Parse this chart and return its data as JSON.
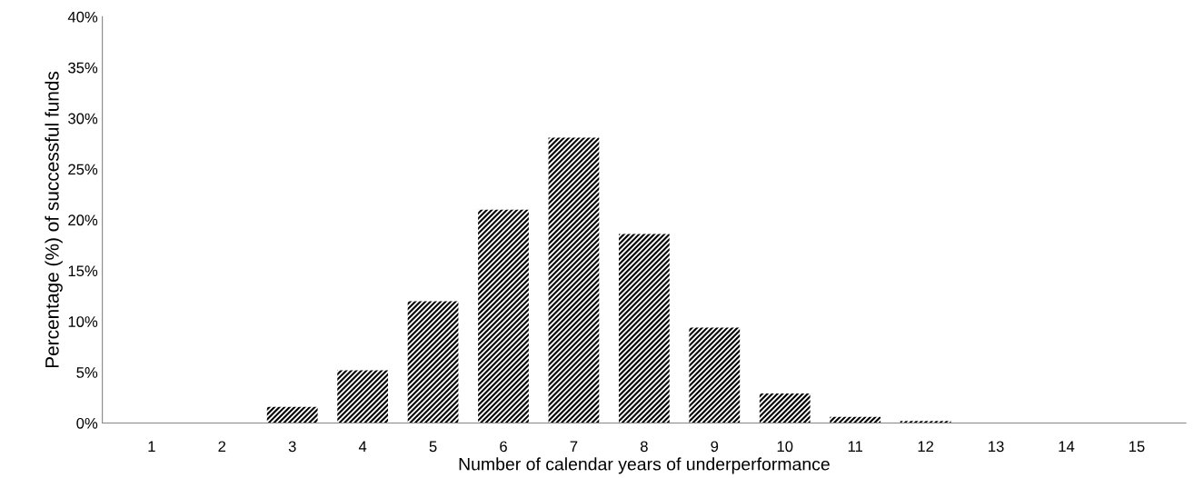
{
  "chart_data": {
    "type": "bar",
    "xlabel": "Number of calendar years of underperformance",
    "ylabel": "Percentage (%) of successful funds",
    "categories": [
      "1",
      "2",
      "3",
      "4",
      "5",
      "6",
      "7",
      "8",
      "9",
      "10",
      "11",
      "12",
      "13",
      "14",
      "15"
    ],
    "values": [
      0,
      0,
      1.6,
      5.2,
      12,
      21,
      28.1,
      18.6,
      9.4,
      2.9,
      0.6,
      0.2,
      0,
      0,
      0
    ],
    "color": "#000000",
    "ylim": [
      0,
      40
    ],
    "yticks": [
      {
        "value": 0,
        "label": "0%"
      },
      {
        "value": 5,
        "label": "5%"
      },
      {
        "value": 10,
        "label": "10%"
      },
      {
        "value": 15,
        "label": "15%"
      },
      {
        "value": 20,
        "label": "20%"
      },
      {
        "value": 25,
        "label": "25%"
      },
      {
        "value": 30,
        "label": "30%"
      },
      {
        "value": 35,
        "label": "35%"
      },
      {
        "value": 40,
        "label": "40%"
      }
    ],
    "grid": false,
    "legend": false
  }
}
